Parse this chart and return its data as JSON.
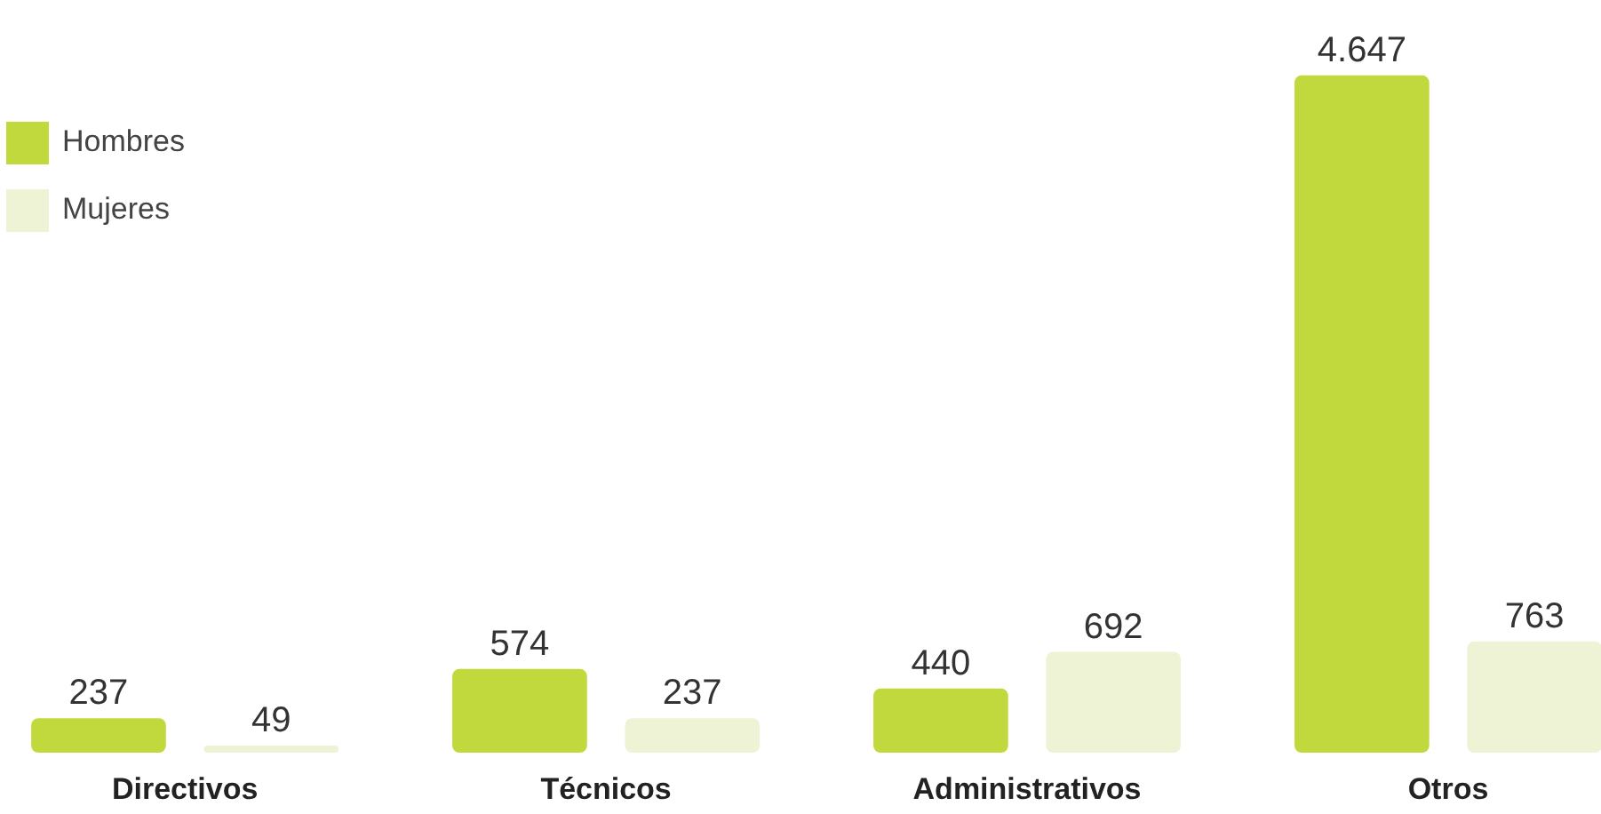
{
  "chart_data": {
    "type": "bar",
    "categories": [
      "Directivos",
      "Técnicos",
      "Administrativos",
      "Otros"
    ],
    "series": [
      {
        "name": "Hombres",
        "color": "#c2d93e",
        "values": [
          237,
          574,
          440,
          4647
        ],
        "value_labels": [
          "237",
          "574",
          "440",
          "4.647"
        ]
      },
      {
        "name": "Mujeres",
        "color": "#eef3d6",
        "values": [
          49,
          237,
          692,
          763
        ],
        "value_labels": [
          "49",
          "237",
          "692",
          "763"
        ]
      }
    ],
    "legend": "top left",
    "grid": false
  }
}
